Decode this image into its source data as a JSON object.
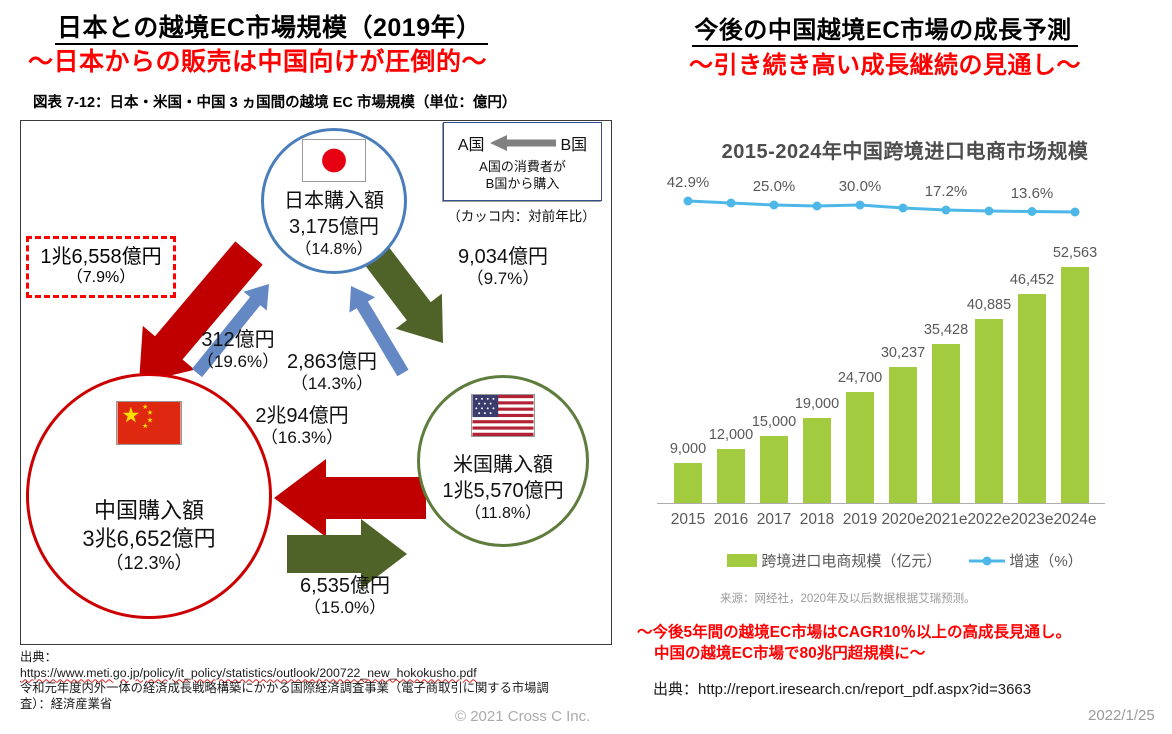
{
  "left": {
    "title": "日本との越境EC市場規模（2019年）",
    "subtitle": "～日本からの販売は中国向けが圧倒的～",
    "caption": "図表 7-12：日本・米国・中国 3 ヵ国間の越境 EC 市場規模（単位：億円）",
    "legend": {
      "country_a": "A国",
      "country_b": "B国",
      "desc_line1": "A国の消費者が",
      "desc_line2": "B国から購入",
      "note": "（カッコ内：対前年比）"
    },
    "nodes": {
      "japan": {
        "label": "日本購入額",
        "amount": "3,175億円",
        "yoy": "（14.8%）"
      },
      "china": {
        "label": "中国購入額",
        "amount": "3兆6,652億円",
        "yoy": "（12.3%）"
      },
      "usa": {
        "label": "米国購入額",
        "amount": "1兆5,570億円",
        "yoy": "（11.8%）"
      }
    },
    "flows": {
      "japan_to_china": {
        "amount": "1兆6,558億円",
        "yoy": "（7.9%）"
      },
      "china_to_japan": {
        "amount": "312億円",
        "yoy": "（19.6%）"
      },
      "usa_to_japan": {
        "amount": "2,863億円",
        "yoy": "（14.3%）"
      },
      "japan_to_usa": {
        "amount": "9,034億円",
        "yoy": "（9.7%）"
      },
      "usa_to_china": {
        "amount": "2兆94億円",
        "yoy": "（16.3%）"
      },
      "china_to_usa": {
        "amount": "6,535億円",
        "yoy": "（15.0%）"
      }
    },
    "source": [
      "出典：",
      "https://www.meti.go.jp/policy/it_policy/statistics/outlook/200722_new_hokokusho.pdf",
      "令和元年度内外一体の経済成長戦略構築にかかる国際経済調査事業（電子商取引に関する市場調査）：経済産業省"
    ]
  },
  "right": {
    "title": "今後の中国越境EC市場の成長予測",
    "subtitle": "～引き続き高い成長継続の見通し～",
    "chart_source": "来源：网经社，2020年及以后数据根据艾瑞预测。",
    "note_line1": "～今後5年間の越境EC市場はCAGR10％以上の高成長見通し。",
    "note_line2": "中国の越境EC市場で80兆円超規模に～",
    "source": "出典：http://report.iresearch.cn/report_pdf.aspx?id=3663"
  },
  "chart_data": {
    "type": "bar",
    "title": "2015-2024年中国跨境进口电商市场规模",
    "categories": [
      "2015",
      "2016",
      "2017",
      "2018",
      "2019",
      "2020e",
      "2021e",
      "2022e",
      "2023e",
      "2024e"
    ],
    "series": [
      {
        "name": "跨境进口电商规模（亿元）",
        "type": "bar",
        "color": "#a3cb3f",
        "values": [
          9000,
          12000,
          15000,
          19000,
          24700,
          30237,
          35428,
          40885,
          46452,
          52563
        ],
        "value_labels": [
          "9,000",
          "12,000",
          "15,000",
          "19,000",
          "24,700",
          "30,237",
          "35,428",
          "40,885",
          "46,452",
          "52,563"
        ]
      },
      {
        "name": "增速（%）",
        "type": "line",
        "color": "#4db8e8",
        "point_labels": [
          {
            "index": 0,
            "text": "42.9%"
          },
          {
            "index": 2,
            "text": "25.0%"
          },
          {
            "index": 4,
            "text": "30.0%"
          },
          {
            "index": 6,
            "text": "17.2%"
          },
          {
            "index": 8,
            "text": "13.6%"
          }
        ]
      }
    ],
    "ylim": [
      0,
      55000
    ],
    "grid": false,
    "legend_position": "bottom"
  },
  "footer": {
    "copyright": "© 2021  Cross C Inc.",
    "date": "2022/1/25"
  }
}
